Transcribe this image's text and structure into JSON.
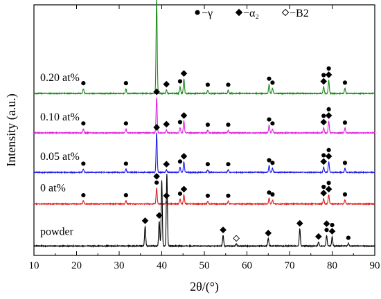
{
  "chart_data": {
    "type": "line",
    "xlabel": "2θ/(°)",
    "ylabel": "Intensity (a.u.)",
    "xlim": [
      10,
      90
    ],
    "x_ticks": [
      10,
      20,
      30,
      40,
      50,
      60,
      70,
      80,
      90
    ],
    "y_ticks_shown": false,
    "grid": false,
    "legend": {
      "placement": "top-right",
      "entries": [
        {
          "symbol": "circle",
          "label": "−γ"
        },
        {
          "symbol": "diamond",
          "label": "−α₂"
        },
        {
          "symbol": "diamond-open",
          "label": "−B2"
        }
      ]
    },
    "series": [
      {
        "name": "0.20 at%",
        "color": "#1a8a1a",
        "baseline": 6.0,
        "peaks": [
          {
            "x": 21.6,
            "h": 0.18
          },
          {
            "x": 31.6,
            "h": 0.18
          },
          {
            "x": 38.8,
            "h": 3.6
          },
          {
            "x": 41.1,
            "h": 0.14
          },
          {
            "x": 44.3,
            "h": 0.25
          },
          {
            "x": 45.2,
            "h": 0.55
          },
          {
            "x": 50.8,
            "h": 0.12
          },
          {
            "x": 55.6,
            "h": 0.12
          },
          {
            "x": 65.2,
            "h": 0.35
          },
          {
            "x": 66.0,
            "h": 0.2
          },
          {
            "x": 78.0,
            "h": 0.25
          },
          {
            "x": 79.2,
            "h": 0.5
          },
          {
            "x": 83.0,
            "h": 0.2
          }
        ],
        "markers": [
          {
            "x": 21.6,
            "symbol": "circle"
          },
          {
            "x": 31.6,
            "symbol": "circle"
          },
          {
            "x": 38.8,
            "symbol": "circle"
          },
          {
            "x": 38.8,
            "symbol": "diamond"
          },
          {
            "x": 41.1,
            "symbol": "diamond"
          },
          {
            "x": 44.3,
            "symbol": "circle"
          },
          {
            "x": 45.2,
            "symbol": "diamond"
          },
          {
            "x": 50.8,
            "symbol": "circle"
          },
          {
            "x": 55.6,
            "symbol": "circle"
          },
          {
            "x": 65.2,
            "symbol": "circle"
          },
          {
            "x": 66.0,
            "symbol": "circle"
          },
          {
            "x": 78.0,
            "symbol": "diamond"
          },
          {
            "x": 78.0,
            "symbol": "circle"
          },
          {
            "x": 79.2,
            "symbol": "diamond"
          },
          {
            "x": 79.2,
            "symbol": "circle"
          },
          {
            "x": 83.0,
            "symbol": "circle"
          }
        ]
      },
      {
        "name": "0.10 at%",
        "color": "#e020e0",
        "baseline": 4.5,
        "peaks": [
          {
            "x": 21.6,
            "h": 0.15
          },
          {
            "x": 31.6,
            "h": 0.15
          },
          {
            "x": 38.8,
            "h": 1.35
          },
          {
            "x": 41.1,
            "h": 0.12
          },
          {
            "x": 44.3,
            "h": 0.2
          },
          {
            "x": 45.2,
            "h": 0.45
          },
          {
            "x": 50.8,
            "h": 0.1
          },
          {
            "x": 55.6,
            "h": 0.1
          },
          {
            "x": 65.2,
            "h": 0.3
          },
          {
            "x": 66.0,
            "h": 0.15
          },
          {
            "x": 78.0,
            "h": 0.2
          },
          {
            "x": 79.2,
            "h": 0.45
          },
          {
            "x": 83.0,
            "h": 0.18
          }
        ],
        "markers": [
          {
            "x": 21.6,
            "symbol": "circle"
          },
          {
            "x": 31.6,
            "symbol": "circle"
          },
          {
            "x": 38.8,
            "symbol": "diamond"
          },
          {
            "x": 41.1,
            "symbol": "diamond"
          },
          {
            "x": 44.3,
            "symbol": "circle"
          },
          {
            "x": 45.2,
            "symbol": "diamond"
          },
          {
            "x": 50.8,
            "symbol": "circle"
          },
          {
            "x": 55.6,
            "symbol": "circle"
          },
          {
            "x": 65.2,
            "symbol": "circle"
          },
          {
            "x": 66.0,
            "symbol": "circle"
          },
          {
            "x": 78.0,
            "symbol": "diamond"
          },
          {
            "x": 78.0,
            "symbol": "circle"
          },
          {
            "x": 79.2,
            "symbol": "diamond"
          },
          {
            "x": 79.2,
            "symbol": "circle"
          },
          {
            "x": 83.0,
            "symbol": "circle"
          }
        ]
      },
      {
        "name": "0.05 at%",
        "color": "#1a1aee",
        "baseline": 3.0,
        "peaks": [
          {
            "x": 21.6,
            "h": 0.12
          },
          {
            "x": 31.6,
            "h": 0.12
          },
          {
            "x": 38.8,
            "h": 1.5
          },
          {
            "x": 41.1,
            "h": 0.1
          },
          {
            "x": 44.3,
            "h": 0.2
          },
          {
            "x": 45.2,
            "h": 0.4
          },
          {
            "x": 50.8,
            "h": 0.1
          },
          {
            "x": 55.6,
            "h": 0.1
          },
          {
            "x": 65.2,
            "h": 0.25
          },
          {
            "x": 66.0,
            "h": 0.15
          },
          {
            "x": 78.0,
            "h": 0.2
          },
          {
            "x": 79.2,
            "h": 0.4
          },
          {
            "x": 83.0,
            "h": 0.15
          }
        ],
        "markers": [
          {
            "x": 21.6,
            "symbol": "circle"
          },
          {
            "x": 31.6,
            "symbol": "circle"
          },
          {
            "x": 38.8,
            "symbol": "diamond"
          },
          {
            "x": 41.1,
            "symbol": "diamond"
          },
          {
            "x": 44.3,
            "symbol": "circle"
          },
          {
            "x": 45.2,
            "symbol": "diamond"
          },
          {
            "x": 50.8,
            "symbol": "circle"
          },
          {
            "x": 55.6,
            "symbol": "circle"
          },
          {
            "x": 65.2,
            "symbol": "circle"
          },
          {
            "x": 66.0,
            "symbol": "circle"
          },
          {
            "x": 78.0,
            "symbol": "diamond"
          },
          {
            "x": 78.0,
            "symbol": "circle"
          },
          {
            "x": 79.2,
            "symbol": "diamond"
          },
          {
            "x": 79.2,
            "symbol": "circle"
          },
          {
            "x": 83.0,
            "symbol": "circle"
          }
        ]
      },
      {
        "name": "0 at%",
        "color": "#e01a1a",
        "baseline": 1.8,
        "peaks": [
          {
            "x": 21.6,
            "h": 0.12
          },
          {
            "x": 31.6,
            "h": 0.12
          },
          {
            "x": 38.8,
            "h": 0.6
          },
          {
            "x": 41.1,
            "h": 0.1
          },
          {
            "x": 44.3,
            "h": 0.18
          },
          {
            "x": 45.2,
            "h": 0.35
          },
          {
            "x": 50.8,
            "h": 0.1
          },
          {
            "x": 55.6,
            "h": 0.1
          },
          {
            "x": 65.2,
            "h": 0.22
          },
          {
            "x": 66.0,
            "h": 0.15
          },
          {
            "x": 78.0,
            "h": 0.2
          },
          {
            "x": 79.2,
            "h": 0.35
          },
          {
            "x": 83.0,
            "h": 0.15
          }
        ],
        "markers": [
          {
            "x": 21.6,
            "symbol": "circle"
          },
          {
            "x": 31.6,
            "symbol": "circle"
          },
          {
            "x": 38.8,
            "symbol": "circle"
          },
          {
            "x": 38.8,
            "symbol": "diamond"
          },
          {
            "x": 41.1,
            "symbol": "diamond"
          },
          {
            "x": 44.3,
            "symbol": "circle"
          },
          {
            "x": 45.2,
            "symbol": "diamond"
          },
          {
            "x": 50.8,
            "symbol": "circle"
          },
          {
            "x": 55.6,
            "symbol": "circle"
          },
          {
            "x": 65.2,
            "symbol": "circle"
          },
          {
            "x": 66.0,
            "symbol": "circle"
          },
          {
            "x": 78.0,
            "symbol": "diamond"
          },
          {
            "x": 78.0,
            "symbol": "circle"
          },
          {
            "x": 79.2,
            "symbol": "diamond"
          },
          {
            "x": 79.2,
            "symbol": "circle"
          },
          {
            "x": 83.0,
            "symbol": "circle"
          }
        ]
      },
      {
        "name": "powder",
        "color": "#000000",
        "baseline": 0.2,
        "peaks": [
          {
            "x": 36.1,
            "h": 0.75
          },
          {
            "x": 39.4,
            "h": 0.95
          },
          {
            "x": 40.0,
            "h": 2.5
          },
          {
            "x": 41.2,
            "h": 2.75
          },
          {
            "x": 54.4,
            "h": 0.4
          },
          {
            "x": 57.5,
            "h": 0.08
          },
          {
            "x": 65.0,
            "h": 0.28
          },
          {
            "x": 72.4,
            "h": 0.65
          },
          {
            "x": 76.8,
            "h": 0.15
          },
          {
            "x": 78.7,
            "h": 0.4
          },
          {
            "x": 80.0,
            "h": 0.35
          },
          {
            "x": 83.8,
            "h": 0.1
          }
        ],
        "markers": [
          {
            "x": 36.1,
            "symbol": "diamond"
          },
          {
            "x": 39.4,
            "symbol": "diamond"
          },
          {
            "x": 54.4,
            "symbol": "diamond"
          },
          {
            "x": 57.5,
            "symbol": "diamond-open"
          },
          {
            "x": 65.0,
            "symbol": "diamond"
          },
          {
            "x": 72.4,
            "symbol": "diamond"
          },
          {
            "x": 76.8,
            "symbol": "diamond"
          },
          {
            "x": 78.7,
            "symbol": "circle"
          },
          {
            "x": 78.7,
            "symbol": "diamond"
          },
          {
            "x": 80.0,
            "symbol": "diamond"
          },
          {
            "x": 80.0,
            "symbol": "circle"
          },
          {
            "x": 83.8,
            "symbol": "circle"
          }
        ]
      }
    ]
  }
}
